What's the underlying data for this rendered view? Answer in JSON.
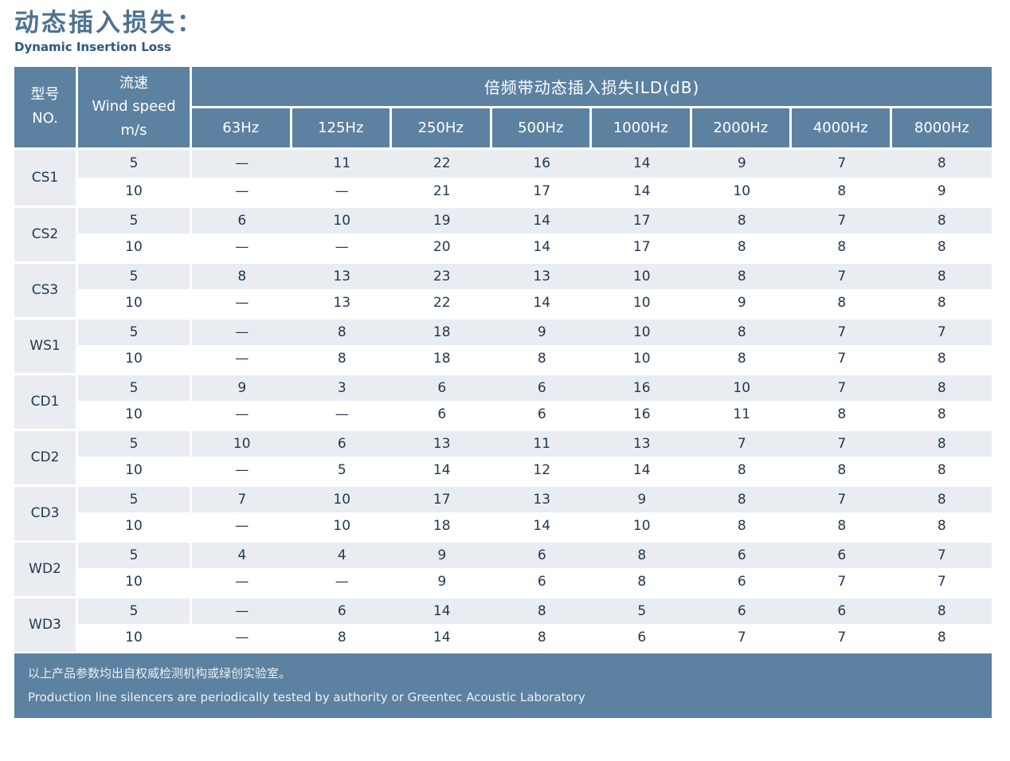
{
  "page": {
    "title": "动态插入损失：",
    "subtitle": "Dynamic Insertion Loss"
  },
  "colors": {
    "header_bg": "#5d81a0",
    "row_light_bg": "#e9edf2",
    "row_white_bg": "#ffffff",
    "data_text": "#22384e",
    "title_color": "#4d7390",
    "subtitle_color": "#2f5680",
    "footer_bg": "#5d81a0",
    "footer_text": "#eaf0f6"
  },
  "table": {
    "header": {
      "model_zh": "型号",
      "model_en": "NO.",
      "wind_zh": "流速",
      "wind_en": "Wind speed",
      "wind_unit": "m/s",
      "ild_banner": "倍频带动态插入损失ILD(dB)",
      "frequencies": [
        "63Hz",
        "125Hz",
        "250Hz",
        "500Hz",
        "1000Hz",
        "2000Hz",
        "4000Hz",
        "8000Hz"
      ]
    },
    "missing_value_symbol": "—",
    "groups": [
      {
        "model": "CS1",
        "rows": [
          {
            "wind_speed": "5",
            "values": [
              "—",
              "11",
              "22",
              "16",
              "14",
              "9",
              "7",
              "8"
            ]
          },
          {
            "wind_speed": "10",
            "values": [
              "—",
              "—",
              "21",
              "17",
              "14",
              "10",
              "8",
              "9"
            ]
          }
        ]
      },
      {
        "model": "CS2",
        "rows": [
          {
            "wind_speed": "5",
            "values": [
              "6",
              "10",
              "19",
              "14",
              "17",
              "8",
              "7",
              "8"
            ]
          },
          {
            "wind_speed": "10",
            "values": [
              "—",
              "—",
              "20",
              "14",
              "17",
              "8",
              "8",
              "8"
            ]
          }
        ]
      },
      {
        "model": "CS3",
        "rows": [
          {
            "wind_speed": "5",
            "values": [
              "8",
              "13",
              "23",
              "13",
              "10",
              "8",
              "7",
              "8"
            ]
          },
          {
            "wind_speed": "10",
            "values": [
              "—",
              "13",
              "22",
              "14",
              "10",
              "9",
              "8",
              "8"
            ]
          }
        ]
      },
      {
        "model": "WS1",
        "rows": [
          {
            "wind_speed": "5",
            "values": [
              "—",
              "8",
              "18",
              "9",
              "10",
              "8",
              "7",
              "7"
            ]
          },
          {
            "wind_speed": "10",
            "values": [
              "—",
              "8",
              "18",
              "8",
              "10",
              "8",
              "7",
              "8"
            ]
          }
        ]
      },
      {
        "model": "CD1",
        "rows": [
          {
            "wind_speed": "5",
            "values": [
              "9",
              "3",
              "6",
              "6",
              "16",
              "10",
              "7",
              "8"
            ]
          },
          {
            "wind_speed": "10",
            "values": [
              "—",
              "—",
              "6",
              "6",
              "16",
              "11",
              "8",
              "8"
            ]
          }
        ]
      },
      {
        "model": "CD2",
        "rows": [
          {
            "wind_speed": "5",
            "values": [
              "10",
              "6",
              "13",
              "11",
              "13",
              "7",
              "7",
              "8"
            ]
          },
          {
            "wind_speed": "10",
            "values": [
              "—",
              "5",
              "14",
              "12",
              "14",
              "8",
              "8",
              "8"
            ]
          }
        ]
      },
      {
        "model": "CD3",
        "rows": [
          {
            "wind_speed": "5",
            "values": [
              "7",
              "10",
              "17",
              "13",
              "9",
              "8",
              "7",
              "8"
            ]
          },
          {
            "wind_speed": "10",
            "values": [
              "—",
              "10",
              "18",
              "14",
              "10",
              "8",
              "8",
              "8"
            ]
          }
        ]
      },
      {
        "model": "WD2",
        "rows": [
          {
            "wind_speed": "5",
            "values": [
              "4",
              "4",
              "9",
              "6",
              "8",
              "6",
              "6",
              "7"
            ]
          },
          {
            "wind_speed": "10",
            "values": [
              "—",
              "—",
              "9",
              "6",
              "8",
              "6",
              "7",
              "7"
            ]
          }
        ]
      },
      {
        "model": "WD3",
        "rows": [
          {
            "wind_speed": "5",
            "values": [
              "—",
              "6",
              "14",
              "8",
              "5",
              "6",
              "6",
              "8"
            ]
          },
          {
            "wind_speed": "10",
            "values": [
              "—",
              "8",
              "14",
              "8",
              "6",
              "7",
              "7",
              "8"
            ]
          }
        ]
      }
    ]
  },
  "footer": {
    "line_zh": "以上产品参数均出自权威检测机构或绿创实验室。",
    "line_en": "Production line silencers are periodically tested by authority or Greentec Acoustic Laboratory"
  }
}
